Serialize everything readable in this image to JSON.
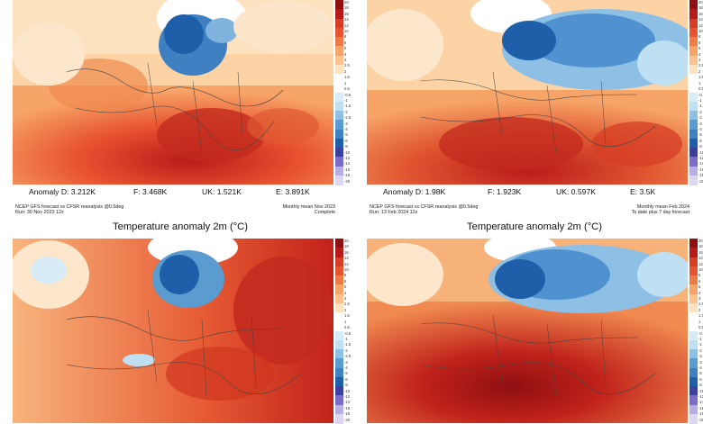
{
  "panels": [
    {
      "anomaly": {
        "d": "Anomaly D: 3.212K",
        "f": "F: 3.468K",
        "uk": "UK: 1.521K",
        "e": "E: 3.891K"
      },
      "meta_left_1": "NCEP GFS forecast vs CFSR reanalysis @0.5deg",
      "meta_left_2": "Run: 30 Nov 2023 12z",
      "meta_right_1": "Monthly mean Nov 2023",
      "meta_right_2": "Complete",
      "title": "Temperature anomaly 2m (°C)"
    },
    {
      "anomaly": {
        "d": "Anomaly D: 1.98K",
        "f": "F: 1.923K",
        "uk": "UK: 0.597K",
        "e": "E: 3.5K"
      },
      "meta_left_1": "NCEP GFS forecast vs CFSR reanalysis @0.5deg",
      "meta_left_2": "Run: 13 Feb 2024 12z",
      "meta_right_1": "Monthly mean Feb 2024",
      "meta_right_2": "To date plus 7 day forecast",
      "title": "Temperature anomaly 2m (°C)"
    },
    {
      "anomaly": null
    },
    {
      "anomaly": null
    }
  ],
  "scale_ticks": [
    "20",
    "18",
    "16",
    "14",
    "12",
    "10",
    "8",
    "6",
    "5",
    "4",
    "3",
    "2.5",
    "2",
    "1.5",
    "1",
    "0.5",
    "-0.5",
    "-1",
    "-1.5",
    "-2",
    "-2.5",
    "-3",
    "-4",
    "-5",
    "-6",
    "-8",
    "-10",
    "-12",
    "-14",
    "-16",
    "-18",
    "-20"
  ],
  "colors": {
    "warm_dark": "#b81a1a",
    "warm_mid": "#e8532f",
    "warm_light": "#f7a468",
    "neutral": "#fde2c0",
    "cold_light": "#bfe0f2",
    "cold_mid": "#5a9bd0",
    "cold_dark": "#1f5ea8",
    "land_border": "#444444"
  }
}
